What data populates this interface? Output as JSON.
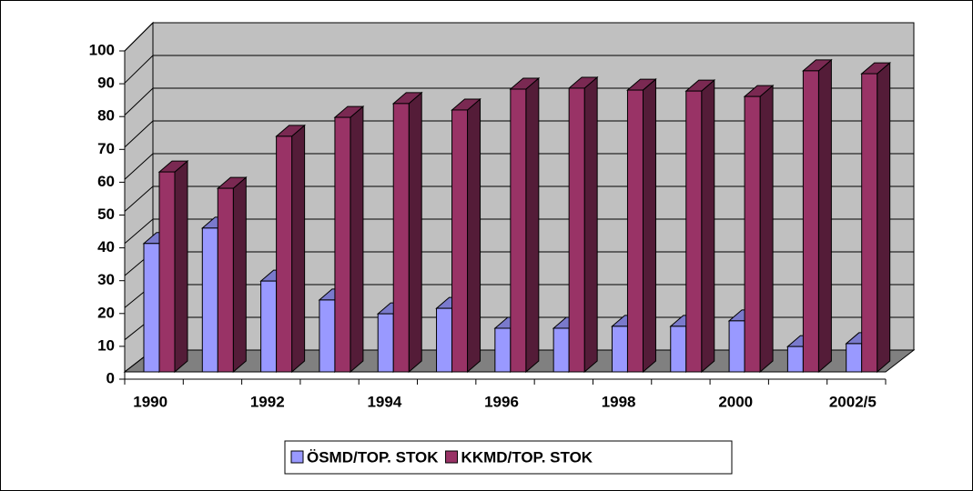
{
  "chart_data": {
    "type": "bar3d",
    "categories": [
      "1990",
      null,
      "1992",
      null,
      "1994",
      null,
      "1996",
      null,
      "1998",
      null,
      "2000",
      null,
      "2002/5"
    ],
    "series": [
      {
        "name": "ÖSMD/TOP. STOK",
        "color": "#9999ff",
        "values": [
          40.0,
          44.8,
          28.3,
          22.4,
          18.1,
          19.8,
          13.6,
          13.6,
          14.2,
          14.2,
          15.9,
          7.9,
          8.8
        ]
      },
      {
        "name": "KKMD/TOP. STOK",
        "color": "#993366",
        "values": [
          62.3,
          57.2,
          73.4,
          79.3,
          83.6,
          81.6,
          88.1,
          88.4,
          87.8,
          87.5,
          85.8,
          93.8,
          92.9
        ]
      }
    ],
    "ylim": [
      0,
      100
    ],
    "yticks": [
      0,
      10,
      20,
      30,
      40,
      50,
      60,
      70,
      80,
      90,
      100
    ],
    "grid": true,
    "legend": "bottom"
  }
}
